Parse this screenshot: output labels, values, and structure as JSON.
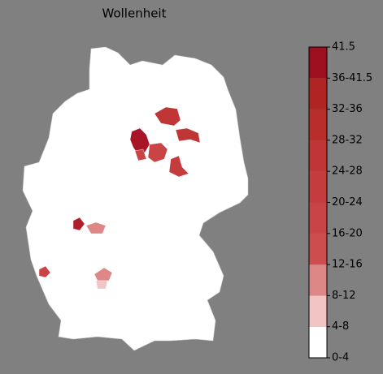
{
  "title": "Wollenheit",
  "colorbar": {
    "ticks": [
      {
        "value": 0,
        "label": "0-4"
      },
      {
        "value": 4,
        "label": "4-8"
      },
      {
        "value": 8,
        "label": "8-12"
      },
      {
        "value": 12,
        "label": "12-16"
      },
      {
        "value": 16,
        "label": "16-20"
      },
      {
        "value": 20,
        "label": "20-24"
      },
      {
        "value": 24,
        "label": "24-28"
      },
      {
        "value": 28,
        "label": "28-32"
      },
      {
        "value": 32,
        "label": "32-36"
      },
      {
        "value": 36,
        "label": "36-41.5"
      },
      41.5
    ],
    "colors": [
      "#ffffff",
      "#f2c4c4",
      "#de8787",
      "#cd4d4d",
      "#c94444",
      "#c53c3c",
      "#c03535",
      "#b92d2d",
      "#b02424",
      "#9e1020"
    ]
  }
}
